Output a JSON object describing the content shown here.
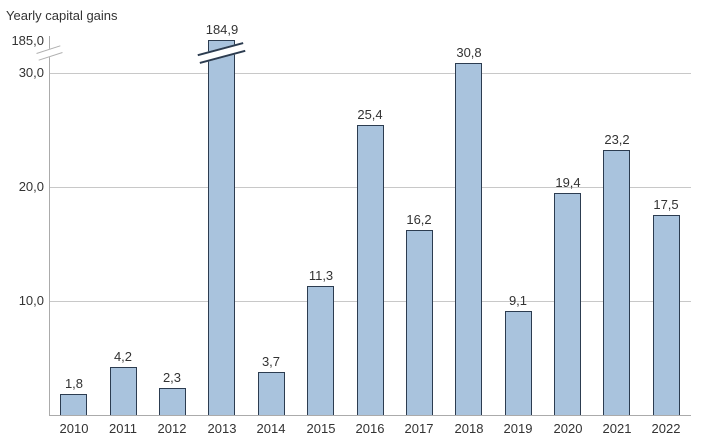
{
  "chart_data": {
    "type": "bar",
    "title": "Yearly capital gains",
    "categories": [
      "2010",
      "2011",
      "2012",
      "2013",
      "2014",
      "2015",
      "2016",
      "2017",
      "2018",
      "2019",
      "2020",
      "2021",
      "2022"
    ],
    "values": [
      1.8,
      4.2,
      2.3,
      184.9,
      3.7,
      11.3,
      25.4,
      16.2,
      30.8,
      9.1,
      19.4,
      23.2,
      17.5
    ],
    "value_labels": [
      "1,8",
      "4,2",
      "2,3",
      "184,9",
      "3,7",
      "11,3",
      "25,4",
      "16,2",
      "30,8",
      "9,1",
      "19,4",
      "23,2",
      "17,5"
    ],
    "y_ticks": [
      {
        "label": "185,0",
        "value": 185
      },
      {
        "label": "30,0",
        "value": 30
      },
      {
        "label": "20,0",
        "value": 20
      },
      {
        "label": "10,0",
        "value": 10
      }
    ],
    "gridline_values": [
      30,
      20,
      10
    ],
    "axis_break": true,
    "broken_bar_category": "2013",
    "ylim_visible": [
      0,
      32
    ],
    "xlabel": "",
    "ylabel": "",
    "legend": "none",
    "grid": "horizontal",
    "colors": {
      "bar_fill": "#a9c3dd",
      "bar_border": "#2c3c50",
      "gridline": "#c8c8c8",
      "axis": "#ababab",
      "text": "#333333"
    }
  }
}
